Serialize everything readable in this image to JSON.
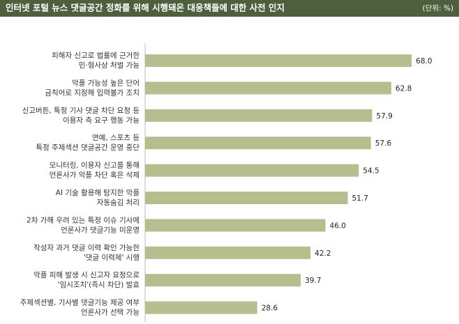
{
  "chart_data": {
    "type": "bar",
    "orientation": "horizontal",
    "title": "인터넷 포털 뉴스 댓글공간 정화를 위해 시행돼온 대응책들에 대한 사전 인지",
    "unit": "(단위: %)",
    "categories": [
      [
        "피해자 신고로 법률에 근거한",
        "민·형사상 처벌 가능"
      ],
      [
        "악플 가능성 높은 단어",
        "금칙어로 지정해 입력불가 조치"
      ],
      [
        "신고버튼, 특정 기사 댓글 차단 요청 등",
        "이용자 측 요구 행동 가능"
      ],
      [
        "연예, 스포츠 등",
        "특정 주제섹션 댓글공간 운영 중단"
      ],
      [
        "모니터링, 이용자 신고를 통해",
        "언론사가 악플 차단 혹은 삭제"
      ],
      [
        "AI 기술 활용해 탐지한 악플",
        "자동숨김 처리"
      ],
      [
        "2차 가해 우려 있는 특정 이슈 기사에",
        "언론사가 댓글기능 미운영"
      ],
      [
        "작성자 과거 댓글 이력 확인 가능한",
        "'댓글 이력제' 시행"
      ],
      [
        "악플 피해 발생 시 신고자 요청으로",
        "'임시조치'(즉시 차단) 발효"
      ],
      [
        "주제섹션별, 기사별 댓글기능 제공 여부",
        "언론사가 선택 가능"
      ]
    ],
    "values": [
      68.0,
      62.8,
      57.9,
      57.6,
      54.5,
      51.7,
      46.0,
      42.2,
      39.7,
      28.6
    ],
    "value_labels": [
      "68.0",
      "62.8",
      "57.9",
      "57.6",
      "54.5",
      "51.7",
      "46.0",
      "42.2",
      "39.7",
      "28.6"
    ],
    "color": "#b7bd8d"
  }
}
